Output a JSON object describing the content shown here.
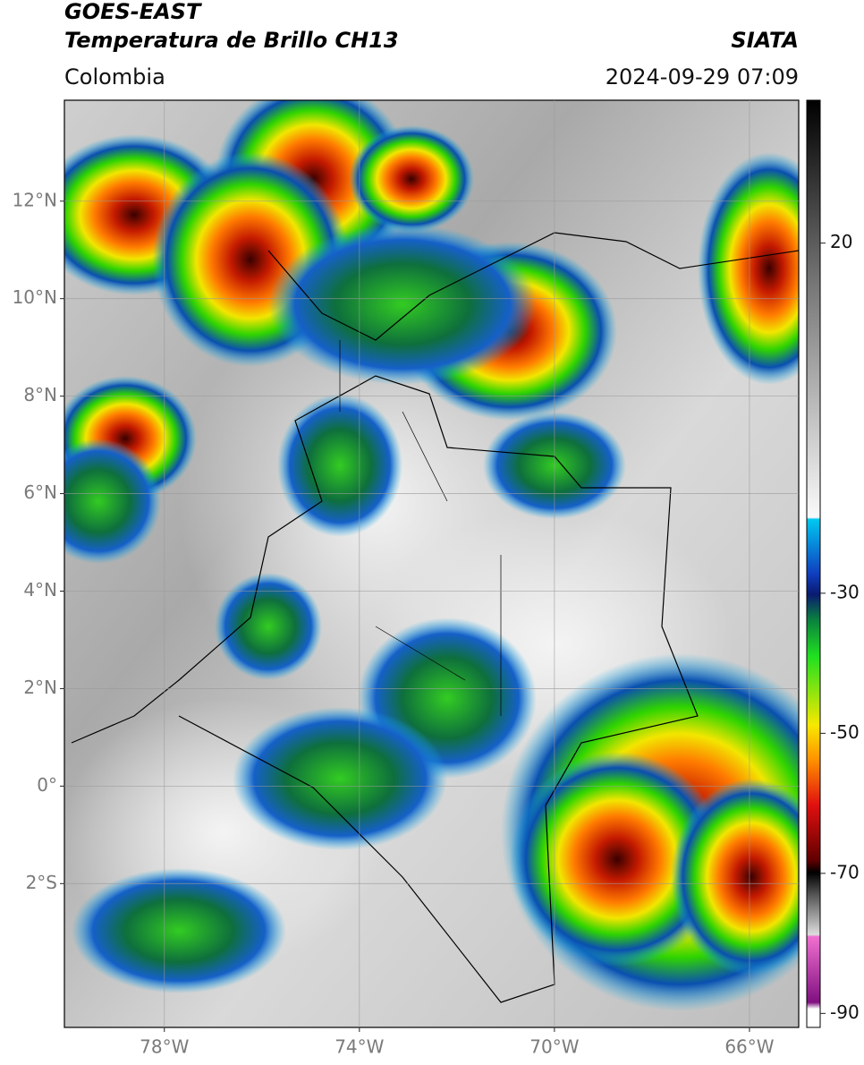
{
  "header": {
    "title": "GOES-EAST",
    "subtitle": "Temperatura de Brillo CH13",
    "source": "SIATA",
    "region": "Colombia",
    "datetime": "2024-09-29 07:09"
  },
  "map_data": {
    "xlim": [
      -80.05,
      -64.99
    ],
    "ylim": [
      -4.95,
      14.07
    ],
    "xticks": [
      {
        "value": -78,
        "label": "78°W"
      },
      {
        "value": -74,
        "label": "74°W"
      },
      {
        "value": -70,
        "label": "70°W"
      },
      {
        "value": -66,
        "label": "66°W"
      }
    ],
    "yticks": [
      {
        "value": 12,
        "label": "12°N"
      },
      {
        "value": 10,
        "label": "10°N"
      },
      {
        "value": 8,
        "label": "8°N"
      },
      {
        "value": 6,
        "label": "6°N"
      },
      {
        "value": 4,
        "label": "4°N"
      },
      {
        "value": 2,
        "label": "2°N"
      },
      {
        "value": 0,
        "label": "0°"
      },
      {
        "value": -2,
        "label": "2°S"
      }
    ],
    "grid": true
  },
  "colorbar": {
    "lim": [
      -92,
      40.4
    ],
    "ticks": [
      20,
      -30,
      -50,
      -70,
      -90
    ]
  }
}
